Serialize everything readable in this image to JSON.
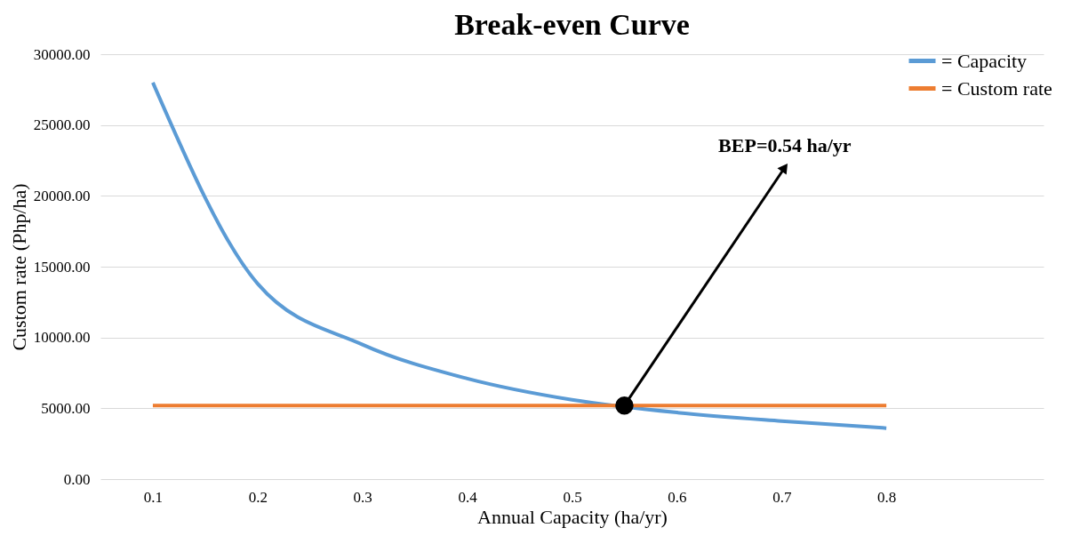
{
  "chart_data": {
    "type": "line",
    "title": "Break-even Curve",
    "xlabel": "Annual Capacity (ha/yr)",
    "ylabel": "Custom rate (Php/ha)",
    "x": [
      0.1,
      0.2,
      0.3,
      0.4,
      0.5,
      0.6,
      0.7,
      0.8
    ],
    "series": [
      {
        "name": "= Capacity",
        "color": "#5b9bd5",
        "values": [
          28000,
          13800,
          9500,
          7100,
          5600,
          4700,
          4100,
          3600
        ]
      },
      {
        "name": "= Custom rate",
        "color": "#ed7d31",
        "values": [
          5200,
          5200,
          5200,
          5200,
          5200,
          5200,
          5200,
          5200
        ]
      },
      {
        "type": "scatter",
        "color": "#000000",
        "marker": "circle",
        "x": [
          0.55
        ],
        "values": [
          5200
        ]
      }
    ],
    "annotations": [
      {
        "text": "BEP=0.54 ha/yr",
        "x": 0.55,
        "y": 5200
      }
    ],
    "xlim": [
      0.05,
      0.95
    ],
    "xticks": [
      0.1,
      0.2,
      0.3,
      0.4,
      0.5,
      0.6,
      0.7,
      0.8
    ],
    "ylim": [
      0,
      30000
    ],
    "yticks": [
      {
        "value": 0,
        "label": "0.00"
      },
      {
        "value": 5000,
        "label": "5000.00"
      },
      {
        "value": 10000,
        "label": "10000.00"
      },
      {
        "value": 15000,
        "label": "15000.00"
      },
      {
        "value": 20000,
        "label": "20000.00"
      },
      {
        "value": 25000,
        "label": "25000.00"
      },
      {
        "value": 30000,
        "label": "30000.00"
      }
    ],
    "grid": "y",
    "legend": "top right",
    "marker": "none",
    "line_style": "solid"
  }
}
